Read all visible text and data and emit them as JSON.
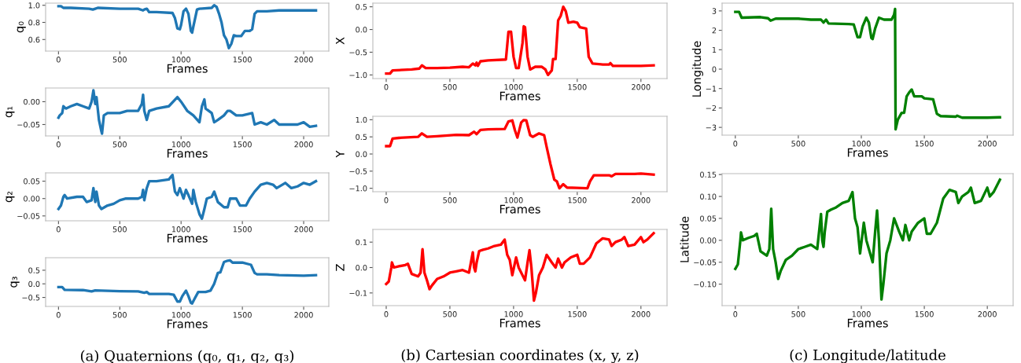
{
  "chart_data": [
    {
      "type": "line",
      "ylabel": "q₀",
      "xlabel": "Frames",
      "xlim": [
        -105,
        2205
      ],
      "ylim": [
        0.465,
        1.025
      ],
      "xticks": [
        0,
        500,
        1000,
        1500,
        2000
      ],
      "yticks": [
        {
          "value": 0.6,
          "label": "0.6"
        },
        {
          "value": 0.8,
          "label": "0.8"
        },
        {
          "value": 1.0,
          "label": "1.0"
        }
      ],
      "grid": false,
      "x": [
        0,
        20,
        40,
        100,
        250,
        280,
        300,
        320,
        500,
        650,
        690,
        700,
        720,
        740,
        800,
        930,
        950,
        970,
        990,
        1000,
        1020,
        1040,
        1060,
        1080,
        1090,
        1100,
        1130,
        1150,
        1250,
        1270,
        1290,
        1310,
        1330,
        1350,
        1370,
        1390,
        1410,
        1430,
        1450,
        1490,
        1520,
        1560,
        1580,
        1600,
        1620,
        1700,
        1800,
        2000,
        2100
      ],
      "series": [
        {
          "color": "#1f77b4",
          "values": [
            0.99,
            0.99,
            0.97,
            0.97,
            0.96,
            0.95,
            0.96,
            0.97,
            0.96,
            0.96,
            0.94,
            0.95,
            0.96,
            0.92,
            0.92,
            0.91,
            0.85,
            0.73,
            0.72,
            0.77,
            0.93,
            0.96,
            0.9,
            0.7,
            0.68,
            0.75,
            0.95,
            0.96,
            0.97,
            1.0,
            0.98,
            0.9,
            0.8,
            0.65,
            0.6,
            0.5,
            0.55,
            0.65,
            0.64,
            0.64,
            0.7,
            0.7,
            0.72,
            0.9,
            0.93,
            0.93,
            0.94,
            0.94,
            0.94
          ]
        }
      ]
    },
    {
      "type": "line",
      "ylabel": "q₁",
      "xlabel": "Frames",
      "xlim": [
        -105,
        2205
      ],
      "ylim": [
        -0.075,
        0.03
      ],
      "xticks": [
        0,
        500,
        1000,
        1500,
        2000
      ],
      "yticks": [
        {
          "value": -0.05,
          "label": "−0.05"
        },
        {
          "value": 0,
          "label": "0.00"
        }
      ],
      "grid": false,
      "x": [
        0,
        10,
        30,
        40,
        60,
        100,
        150,
        200,
        250,
        270,
        285,
        300,
        310,
        330,
        350,
        355,
        370,
        400,
        500,
        560,
        650,
        680,
        690,
        700,
        720,
        740,
        800,
        900,
        970,
        1000,
        1050,
        1100,
        1150,
        1170,
        1190,
        1200,
        1250,
        1270,
        1300,
        1350,
        1380,
        1400,
        1450,
        1500,
        1580,
        1600,
        1650,
        1700,
        1760,
        1800,
        1850,
        1900,
        1950,
        2000,
        2050,
        2100
      ],
      "series": [
        {
          "color": "#1f77b4",
          "values": [
            -0.035,
            -0.03,
            -0.025,
            -0.01,
            -0.015,
            -0.01,
            -0.005,
            -0.01,
            -0.015,
            0.0,
            0.025,
            -0.005,
            0.01,
            -0.04,
            -0.065,
            -0.07,
            -0.03,
            -0.025,
            -0.025,
            -0.02,
            -0.02,
            -0.005,
            0.015,
            -0.02,
            -0.04,
            -0.02,
            -0.015,
            -0.01,
            0.01,
            0.0,
            -0.02,
            -0.03,
            -0.045,
            -0.01,
            0.005,
            -0.015,
            -0.025,
            -0.045,
            -0.04,
            -0.03,
            -0.02,
            -0.02,
            -0.03,
            -0.03,
            -0.025,
            -0.05,
            -0.045,
            -0.05,
            -0.04,
            -0.05,
            -0.05,
            -0.05,
            -0.05,
            -0.045,
            -0.055,
            -0.053
          ]
        }
      ]
    },
    {
      "type": "line",
      "ylabel": "q₂",
      "xlabel": "Frames",
      "xlim": [
        -105,
        2205
      ],
      "ylim": [
        -0.064,
        0.074
      ],
      "xticks": [
        0,
        500,
        1000,
        1500,
        2000
      ],
      "yticks": [
        {
          "value": -0.05,
          "label": "−0.05"
        },
        {
          "value": 0,
          "label": "0.00"
        },
        {
          "value": 0.05,
          "label": "0.05"
        }
      ],
      "grid": false,
      "x": [
        0,
        20,
        40,
        50,
        70,
        150,
        200,
        230,
        270,
        285,
        300,
        310,
        330,
        350,
        400,
        450,
        500,
        550,
        600,
        650,
        680,
        690,
        700,
        720,
        740,
        800,
        900,
        930,
        950,
        970,
        990,
        1020,
        1040,
        1060,
        1090,
        1100,
        1120,
        1150,
        1170,
        1190,
        1210,
        1250,
        1270,
        1300,
        1350,
        1380,
        1400,
        1450,
        1480,
        1530,
        1560,
        1600,
        1650,
        1700,
        1750,
        1780,
        1850,
        1900,
        1950,
        2000,
        2050,
        2100
      ],
      "series": [
        {
          "color": "#1f77b4",
          "values": [
            -0.03,
            -0.02,
            0.005,
            0.01,
            0.0,
            0.005,
            0.005,
            -0.01,
            -0.005,
            0.03,
            -0.01,
            0.02,
            -0.02,
            -0.03,
            -0.02,
            -0.015,
            -0.005,
            0.0,
            0.0,
            0.0,
            0.005,
            0.025,
            -0.005,
            0.03,
            0.05,
            0.05,
            0.055,
            0.068,
            0.02,
            0.01,
            0.03,
            0.0,
            0.025,
            0.01,
            -0.015,
            0.025,
            -0.01,
            -0.045,
            -0.058,
            -0.03,
            0.0,
            0.005,
            0.02,
            -0.01,
            -0.025,
            -0.025,
            0.0,
            0.0,
            -0.02,
            -0.02,
            0.0,
            0.02,
            0.04,
            0.045,
            0.04,
            0.03,
            0.045,
            0.03,
            0.035,
            0.045,
            0.04,
            0.05
          ]
        }
      ]
    },
    {
      "type": "line",
      "ylabel": "q₃",
      "xlabel": "Frames",
      "xlim": [
        -105,
        2205
      ],
      "ylim": [
        -0.83,
        0.96
      ],
      "xticks": [
        0,
        500,
        1000,
        1500,
        2000
      ],
      "yticks": [
        {
          "value": -0.5,
          "label": "−0.5"
        },
        {
          "value": 0,
          "label": "0.0"
        },
        {
          "value": 0.5,
          "label": "0.5"
        }
      ],
      "grid": false,
      "annotations": [
        "(a) Quaternions (q₀, q₁, q₂, q₃)"
      ],
      "x": [
        0,
        30,
        50,
        200,
        270,
        300,
        500,
        650,
        700,
        720,
        740,
        900,
        940,
        970,
        990,
        1010,
        1040,
        1060,
        1080,
        1090,
        1110,
        1140,
        1200,
        1240,
        1270,
        1300,
        1320,
        1350,
        1380,
        1400,
        1420,
        1500,
        1570,
        1600,
        1620,
        1700,
        1800,
        2000,
        2100
      ],
      "series": [
        {
          "color": "#1f77b4",
          "values": [
            -0.12,
            -0.12,
            -0.22,
            -0.23,
            -0.28,
            -0.24,
            -0.27,
            -0.28,
            -0.33,
            -0.3,
            -0.37,
            -0.37,
            -0.4,
            -0.65,
            -0.65,
            -0.45,
            -0.25,
            -0.45,
            -0.7,
            -0.72,
            -0.55,
            -0.3,
            -0.3,
            -0.25,
            0.0,
            0.4,
            0.42,
            0.8,
            0.85,
            0.86,
            0.78,
            0.78,
            0.7,
            0.4,
            0.35,
            0.35,
            0.32,
            0.3,
            0.32
          ]
        }
      ]
    },
    {
      "type": "line",
      "ylabel": "X",
      "xlabel": "Frames",
      "xlim": [
        -105,
        2205
      ],
      "ylim": [
        -1.08,
        0.58
      ],
      "xticks": [
        0,
        500,
        1000,
        1500,
        2000
      ],
      "yticks": [
        {
          "value": -1.0,
          "label": "−1.0"
        },
        {
          "value": -0.5,
          "label": "−0.5"
        },
        {
          "value": 0,
          "label": "0.0"
        },
        {
          "value": 0.5,
          "label": "0.5"
        }
      ],
      "grid": false,
      "x": [
        0,
        30,
        50,
        200,
        260,
        280,
        310,
        400,
        500,
        600,
        650,
        680,
        700,
        710,
        720,
        740,
        800,
        940,
        960,
        980,
        1000,
        1020,
        1040,
        1070,
        1080,
        1090,
        1110,
        1130,
        1170,
        1220,
        1250,
        1270,
        1300,
        1310,
        1330,
        1350,
        1370,
        1390,
        1410,
        1430,
        1470,
        1500,
        1520,
        1570,
        1590,
        1620,
        1700,
        1750,
        1760,
        1780,
        2000,
        2100
      ],
      "series": [
        {
          "color": "#ff0000",
          "values": [
            -0.97,
            -0.97,
            -0.9,
            -0.88,
            -0.86,
            -0.79,
            -0.85,
            -0.85,
            -0.84,
            -0.82,
            -0.83,
            -0.75,
            -0.79,
            -0.73,
            -0.8,
            -0.7,
            -0.68,
            -0.66,
            -0.05,
            -0.05,
            -0.6,
            -0.85,
            -0.85,
            -0.3,
            0.07,
            0.05,
            -0.6,
            -0.88,
            -0.82,
            -0.82,
            -0.88,
            -1.0,
            -0.9,
            -0.65,
            -0.65,
            0.2,
            0.3,
            0.5,
            0.4,
            0.15,
            0.17,
            0.15,
            0.05,
            0.02,
            -0.6,
            -0.75,
            -0.77,
            -0.77,
            -0.74,
            -0.8,
            -0.8,
            -0.79
          ]
        }
      ]
    },
    {
      "type": "line",
      "ylabel": "Y",
      "xlabel": "Frames",
      "xlim": [
        -105,
        2205
      ],
      "ylim": [
        -1.1,
        1.1
      ],
      "xticks": [
        0,
        500,
        1000,
        1500,
        2000
      ],
      "yticks": [
        {
          "value": -1.0,
          "label": "−1.0"
        },
        {
          "value": -0.5,
          "label": "−0.5"
        },
        {
          "value": 0,
          "label": "0.0"
        },
        {
          "value": 0.5,
          "label": "0.5"
        },
        {
          "value": 1.0,
          "label": "1.0"
        }
      ],
      "grid": false,
      "x": [
        0,
        30,
        50,
        100,
        250,
        280,
        320,
        400,
        550,
        650,
        690,
        710,
        740,
        800,
        930,
        960,
        990,
        1010,
        1030,
        1060,
        1080,
        1100,
        1130,
        1150,
        1200,
        1240,
        1260,
        1290,
        1320,
        1340,
        1360,
        1390,
        1420,
        1500,
        1580,
        1600,
        1630,
        1750,
        1770,
        1800,
        1950,
        2000,
        2100
      ],
      "series": [
        {
          "color": "#ff0000",
          "values": [
            0.23,
            0.23,
            0.45,
            0.47,
            0.5,
            0.6,
            0.5,
            0.52,
            0.56,
            0.55,
            0.65,
            0.58,
            0.7,
            0.72,
            0.73,
            0.95,
            0.98,
            0.7,
            0.48,
            0.92,
            0.99,
            0.98,
            0.55,
            0.5,
            0.6,
            0.55,
            0.2,
            -0.3,
            -0.75,
            -0.8,
            -1.0,
            -0.88,
            -0.98,
            -0.99,
            -1.0,
            -0.8,
            -0.62,
            -0.62,
            -0.65,
            -0.58,
            -0.58,
            -0.57,
            -0.6
          ]
        }
      ]
    },
    {
      "type": "line",
      "ylabel": "Z",
      "xlabel": "Frames",
      "xlim": [
        -105,
        2205
      ],
      "ylim": [
        -0.15,
        0.15
      ],
      "xticks": [
        0,
        500,
        1000,
        1500,
        2000
      ],
      "yticks": [
        {
          "value": -0.1,
          "label": "−0.1"
        },
        {
          "value": 0,
          "label": "0.0"
        },
        {
          "value": 0.1,
          "label": "0.1"
        }
      ],
      "grid": false,
      "annotations": [
        "(b) Cartesian coordinates (x, y, z)"
      ],
      "x": [
        0,
        20,
        40,
        45,
        60,
        100,
        150,
        170,
        200,
        250,
        270,
        285,
        300,
        320,
        340,
        360,
        400,
        450,
        500,
        550,
        600,
        650,
        680,
        690,
        700,
        710,
        730,
        760,
        800,
        850,
        900,
        930,
        950,
        970,
        990,
        1020,
        1040,
        1070,
        1090,
        1110,
        1125,
        1140,
        1160,
        1175,
        1200,
        1230,
        1260,
        1300,
        1330,
        1350,
        1380,
        1400,
        1450,
        1500,
        1520,
        1550,
        1600,
        1650,
        1700,
        1750,
        1770,
        1800,
        1850,
        1870,
        1900,
        1950,
        2000,
        2020,
        2050,
        2100
      ],
      "series": [
        {
          "color": "#ff0000",
          "values": [
            -0.065,
            -0.055,
            0.0,
            0.02,
            0.0,
            0.005,
            0.01,
            0.015,
            -0.025,
            -0.035,
            -0.02,
            0.072,
            -0.02,
            -0.05,
            -0.085,
            -0.07,
            -0.045,
            -0.035,
            -0.02,
            -0.015,
            -0.01,
            -0.02,
            0.06,
            0.0,
            -0.015,
            0.02,
            0.065,
            0.07,
            0.075,
            0.085,
            0.09,
            0.11,
            0.05,
            0.03,
            -0.03,
            0.04,
            0.0,
            -0.03,
            -0.05,
            0.02,
            0.068,
            0.0,
            -0.13,
            -0.1,
            -0.03,
            0.0,
            0.05,
            0.02,
            0.0,
            0.035,
            0.0,
            0.02,
            0.04,
            0.05,
            0.015,
            0.015,
            0.04,
            0.095,
            0.115,
            0.11,
            0.085,
            0.1,
            0.11,
            0.12,
            0.085,
            0.09,
            0.12,
            0.1,
            0.11,
            0.135
          ]
        }
      ]
    },
    {
      "type": "line",
      "ylabel": "Longitude",
      "xlabel": "Frames",
      "xlim": [
        -105,
        2205
      ],
      "ylim": [
        -3.4,
        3.4
      ],
      "xticks": [
        0,
        500,
        1000,
        1500,
        2000
      ],
      "yticks": [
        {
          "value": -3,
          "label": "−3"
        },
        {
          "value": -2,
          "label": "−2"
        },
        {
          "value": -1,
          "label": "−1"
        },
        0,
        1,
        2,
        3
      ],
      "grid": false,
      "x": [
        0,
        30,
        50,
        200,
        260,
        280,
        320,
        500,
        600,
        680,
        700,
        720,
        740,
        900,
        940,
        970,
        990,
        1010,
        1040,
        1060,
        1080,
        1090,
        1110,
        1140,
        1180,
        1240,
        1260,
        1268,
        1272,
        1290,
        1320,
        1340,
        1360,
        1380,
        1400,
        1420,
        1480,
        1500,
        1570,
        1600,
        1630,
        1750,
        1760,
        1800,
        2000,
        2100
      ],
      "series": [
        {
          "color": "#008000",
          "values": [
            2.95,
            2.95,
            2.65,
            2.68,
            2.62,
            2.5,
            2.6,
            2.6,
            2.55,
            2.55,
            2.4,
            2.55,
            2.35,
            2.32,
            2.3,
            1.65,
            1.65,
            2.2,
            2.65,
            2.4,
            1.6,
            1.55,
            2.1,
            2.65,
            2.55,
            2.55,
            2.8,
            3.1,
            -3.1,
            -2.6,
            -2.25,
            -2.25,
            -1.4,
            -1.2,
            -1.05,
            -1.4,
            -1.4,
            -1.5,
            -1.55,
            -2.3,
            -2.42,
            -2.45,
            -2.4,
            -2.5,
            -2.5,
            -2.48
          ]
        }
      ]
    },
    {
      "type": "line",
      "ylabel": "Latitude",
      "xlabel": "Frames",
      "xlim": [
        -105,
        2205
      ],
      "ylim": [
        -0.149,
        0.152
      ],
      "xticks": [
        0,
        500,
        1000,
        1500,
        2000
      ],
      "yticks": [
        {
          "value": -0.1,
          "label": "−0.10"
        },
        {
          "value": -0.05,
          "label": "−0.05"
        },
        {
          "value": 0,
          "label": "0.00"
        },
        {
          "value": 0.05,
          "label": "0.05"
        },
        {
          "value": 0.1,
          "label": "0.10"
        },
        {
          "value": 0.15,
          "label": "0.15"
        }
      ],
      "grid": false,
      "annotations": [
        "(c) Longitude/latitude"
      ],
      "x": [
        0,
        20,
        40,
        45,
        60,
        100,
        150,
        170,
        200,
        250,
        270,
        285,
        300,
        320,
        340,
        360,
        400,
        450,
        500,
        550,
        600,
        650,
        680,
        690,
        700,
        710,
        730,
        760,
        800,
        850,
        900,
        930,
        950,
        970,
        990,
        1020,
        1040,
        1070,
        1090,
        1110,
        1125,
        1140,
        1160,
        1175,
        1200,
        1230,
        1260,
        1300,
        1330,
        1350,
        1380,
        1400,
        1450,
        1500,
        1520,
        1550,
        1600,
        1650,
        1700,
        1750,
        1770,
        1800,
        1850,
        1870,
        1900,
        1950,
        2000,
        2020,
        2050,
        2100
      ],
      "series": [
        {
          "color": "#008000",
          "values": [
            -0.065,
            -0.055,
            0.0,
            0.018,
            0.0,
            0.005,
            0.01,
            0.015,
            -0.025,
            -0.035,
            -0.02,
            0.072,
            -0.02,
            -0.05,
            -0.088,
            -0.07,
            -0.045,
            -0.035,
            -0.02,
            -0.015,
            -0.01,
            -0.02,
            0.06,
            0.0,
            -0.015,
            0.02,
            0.065,
            0.07,
            0.075,
            0.085,
            0.09,
            0.11,
            0.05,
            0.03,
            -0.03,
            0.04,
            0.0,
            -0.03,
            -0.05,
            0.02,
            0.068,
            0.0,
            -0.135,
            -0.1,
            -0.03,
            0.0,
            0.05,
            0.02,
            0.0,
            0.035,
            0.0,
            0.02,
            0.04,
            0.05,
            0.015,
            0.015,
            0.04,
            0.095,
            0.115,
            0.11,
            0.085,
            0.1,
            0.11,
            0.12,
            0.085,
            0.09,
            0.12,
            0.1,
            0.11,
            0.138
          ]
        }
      ]
    }
  ]
}
